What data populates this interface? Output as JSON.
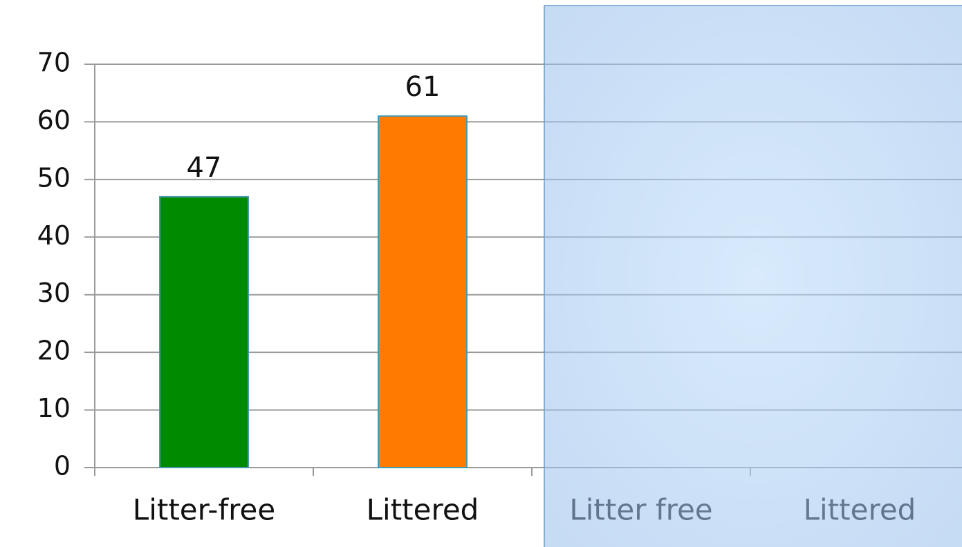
{
  "chart_data": {
    "type": "bar",
    "categories": [
      "Litter-free",
      "Littered",
      "Litter free",
      "Littered"
    ],
    "values": [
      47,
      61,
      0,
      0
    ],
    "value_labels": [
      "47",
      "61",
      null,
      null
    ],
    "colors": [
      "#008a00",
      "#ff7b00",
      "#4a9aad",
      "#4a9aad"
    ],
    "ylim": [
      0,
      70
    ],
    "yticks": [
      0,
      10,
      20,
      30,
      40,
      50,
      60,
      70
    ],
    "grid": true
  }
}
